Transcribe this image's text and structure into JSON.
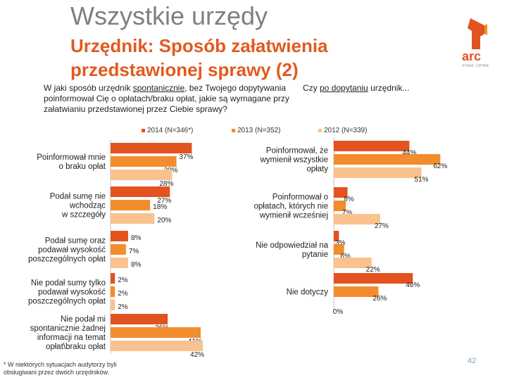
{
  "title": "Wszystkie urzędy",
  "subtitle": "Urzędnik: Sposób załatwienia przedstawionej sprawy (2)",
  "logo": {
    "text": "arc",
    "tagline": "RYNEK i OPINIA"
  },
  "question_left": {
    "pre": "W jaki sposób urzędnik ",
    "underlined": "spontanicznie",
    "post": ", bez Twojego dopytywania poinformował Cię o opłatach/braku opłat, jakie są wymagane przy załatwianiu przedstawionej przez Ciebie sprawy?"
  },
  "question_right": {
    "pre": "Czy ",
    "underlined": "po dopytaniu",
    "post": " urzędnik..."
  },
  "legend": [
    "2014 (N=346*)",
    "2013 (N=352)",
    "2012 (N=339)"
  ],
  "colors": {
    "s2014": "#e2531f",
    "s2013": "#f28c2c",
    "s2012": "#f9c28e"
  },
  "footnote": "* W niektórych sytuacjach audytorzy byli obsługiwani przez dwóch urzędników.",
  "page_number": "42",
  "chart_data": [
    {
      "type": "bar",
      "orientation": "horizontal",
      "series_names": [
        "2014 (N=346*)",
        "2013 (N=352)",
        "2012 (N=339)"
      ],
      "categories": [
        "Poinformował mnie o braku opłat",
        "Podał sumę nie wchodząc w szczegóły",
        "Podał sumę oraz podawał wysokość poszczególnych opłat",
        "Nie podał sumy tylko podawał wysokość poszczególnych opłat",
        "Nie podał mi spontanicznie żadnej informacji na temat opłat\\braku opłat"
      ],
      "category_lines": [
        [
          "Poinformował mnie",
          "o braku opłat"
        ],
        [
          "Podał sumę nie",
          "wchodząc",
          "w szczegóły"
        ],
        [
          "Podał sumę oraz",
          "podawał wysokość",
          "poszczególnych opłat"
        ],
        [
          "Nie podał sumy tylko",
          "podawał wysokość",
          "poszczególnych opłat"
        ],
        [
          "Nie podał mi",
          "spontanicznie żadnej",
          "informacji na temat",
          "opłat\\braku opłat"
        ]
      ],
      "values": [
        [
          37,
          30,
          28
        ],
        [
          27,
          18,
          20
        ],
        [
          8,
          7,
          8
        ],
        [
          2,
          2,
          2
        ],
        [
          26,
          41,
          42
        ]
      ],
      "labels": [
        [
          "37%",
          "30%",
          "28%"
        ],
        [
          "27%",
          "18%",
          "20%"
        ],
        [
          "8%",
          "7%",
          "8%"
        ],
        [
          "2%",
          "2%",
          "2%"
        ],
        [
          "26%",
          "41%",
          "42%"
        ]
      ],
      "unit": "%"
    },
    {
      "type": "bar",
      "orientation": "horizontal",
      "series_names": [
        "2014 (N=346*)",
        "2013 (N=352)",
        "2012 (N=339)"
      ],
      "categories": [
        "Poinformował, że wymienił wszystkie opłaty",
        "Poinformował o opłatach, których nie wymienił wcześniej",
        "Nie odpowiedział na pytanie",
        "Nie dotyczy"
      ],
      "category_lines": [
        [
          "Poinformował, że",
          "wymienił wszystkie",
          "opłaty"
        ],
        [
          "Poinformował o",
          "opłatach, których nie",
          "wymienił wcześniej"
        ],
        [
          "Nie odpowiedział na",
          "pytanie"
        ],
        [
          "Nie dotyczy"
        ]
      ],
      "values": [
        [
          44,
          62,
          51
        ],
        [
          8,
          7,
          27
        ],
        [
          3,
          6,
          22
        ],
        [
          46,
          26,
          0
        ]
      ],
      "labels": [
        [
          "44%",
          "62%",
          "51%"
        ],
        [
          "8%",
          "7%",
          "27%"
        ],
        [
          "3%",
          "6%",
          "22%"
        ],
        [
          "46%",
          "26%",
          "0%"
        ]
      ],
      "unit": "%"
    }
  ]
}
